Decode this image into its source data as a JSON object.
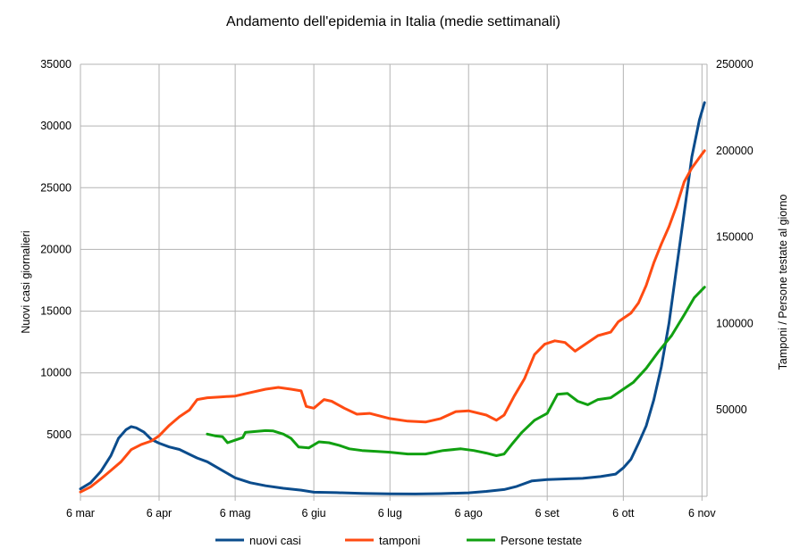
{
  "chart_data": {
    "type": "line",
    "title": "Andamento dell'epidemia in Italia (medie settimanali)",
    "ylabel_left": "Nuovi casi giornalieri",
    "ylabel_right": "Tamponi / Persone testate al giorno",
    "x_tick_labels": [
      "6 mar",
      "6 apr",
      "6 mag",
      "6 giu",
      "6 lug",
      "6 ago",
      "6 set",
      "6 ott",
      "6 nov"
    ],
    "ylim_left": [
      0,
      35000
    ],
    "ylim_right": [
      0,
      250000
    ],
    "y_left_ticks": [
      "5000",
      "10000",
      "15000",
      "20000",
      "25000",
      "30000",
      "35000"
    ],
    "y_right_ticks": [
      "50000",
      "100000",
      "150000",
      "200000",
      "250000"
    ],
    "grid": true,
    "legend_position": "bottom",
    "series": [
      {
        "name": "nuovi casi",
        "axis": "left",
        "color": "#0b4c8c",
        "points": [
          [
            "2020-03-06",
            600
          ],
          [
            "2020-03-10",
            1100
          ],
          [
            "2020-03-14",
            2000
          ],
          [
            "2020-03-18",
            3300
          ],
          [
            "2020-03-21",
            4700
          ],
          [
            "2020-03-24",
            5400
          ],
          [
            "2020-03-26",
            5650
          ],
          [
            "2020-03-28",
            5550
          ],
          [
            "2020-03-31",
            5200
          ],
          [
            "2020-04-03",
            4600
          ],
          [
            "2020-04-06",
            4300
          ],
          [
            "2020-04-10",
            4000
          ],
          [
            "2020-04-14",
            3800
          ],
          [
            "2020-04-18",
            3400
          ],
          [
            "2020-04-21",
            3100
          ],
          [
            "2020-04-25",
            2800
          ],
          [
            "2020-04-30",
            2200
          ],
          [
            "2020-05-06",
            1500
          ],
          [
            "2020-05-12",
            1100
          ],
          [
            "2020-05-18",
            850
          ],
          [
            "2020-05-25",
            650
          ],
          [
            "2020-06-01",
            500
          ],
          [
            "2020-06-06",
            330
          ],
          [
            "2020-06-15",
            300
          ],
          [
            "2020-06-25",
            230
          ],
          [
            "2020-07-06",
            200
          ],
          [
            "2020-07-16",
            190
          ],
          [
            "2020-07-26",
            220
          ],
          [
            "2020-08-06",
            280
          ],
          [
            "2020-08-13",
            400
          ],
          [
            "2020-08-20",
            550
          ],
          [
            "2020-08-25",
            800
          ],
          [
            "2020-08-31",
            1250
          ],
          [
            "2020-09-06",
            1350
          ],
          [
            "2020-09-12",
            1400
          ],
          [
            "2020-09-20",
            1450
          ],
          [
            "2020-09-27",
            1600
          ],
          [
            "2020-10-03",
            1800
          ],
          [
            "2020-10-06",
            2300
          ],
          [
            "2020-10-09",
            3000
          ],
          [
            "2020-10-12",
            4300
          ],
          [
            "2020-10-15",
            5700
          ],
          [
            "2020-10-18",
            7800
          ],
          [
            "2020-10-21",
            10500
          ],
          [
            "2020-10-24",
            14000
          ],
          [
            "2020-10-27",
            18500
          ],
          [
            "2020-10-30",
            23000
          ],
          [
            "2020-11-02",
            27500
          ],
          [
            "2020-11-05",
            30500
          ],
          [
            "2020-11-07",
            31900
          ]
        ]
      },
      {
        "name": "tamponi",
        "axis": "right",
        "color": "#ff4b12",
        "points": [
          [
            "2020-03-06",
            2500
          ],
          [
            "2020-03-10",
            5500
          ],
          [
            "2020-03-14",
            10000
          ],
          [
            "2020-03-18",
            15000
          ],
          [
            "2020-03-22",
            20000
          ],
          [
            "2020-03-26",
            27000
          ],
          [
            "2020-03-30",
            30000
          ],
          [
            "2020-04-03",
            32000
          ],
          [
            "2020-04-06",
            35000
          ],
          [
            "2020-04-10",
            41000
          ],
          [
            "2020-04-14",
            46000
          ],
          [
            "2020-04-18",
            50000
          ],
          [
            "2020-04-21",
            56000
          ],
          [
            "2020-04-25",
            57000
          ],
          [
            "2020-04-30",
            57500
          ],
          [
            "2020-05-06",
            58000
          ],
          [
            "2020-05-12",
            60000
          ],
          [
            "2020-05-18",
            62000
          ],
          [
            "2020-05-23",
            63000
          ],
          [
            "2020-05-28",
            62000
          ],
          [
            "2020-06-01",
            61000
          ],
          [
            "2020-06-03",
            52000
          ],
          [
            "2020-06-06",
            51000
          ],
          [
            "2020-06-10",
            56000
          ],
          [
            "2020-06-13",
            55000
          ],
          [
            "2020-06-18",
            51000
          ],
          [
            "2020-06-23",
            47500
          ],
          [
            "2020-06-28",
            48000
          ],
          [
            "2020-07-06",
            45000
          ],
          [
            "2020-07-13",
            43500
          ],
          [
            "2020-07-20",
            43000
          ],
          [
            "2020-07-26",
            45000
          ],
          [
            "2020-08-01",
            49000
          ],
          [
            "2020-08-06",
            49500
          ],
          [
            "2020-08-13",
            47000
          ],
          [
            "2020-08-17",
            44000
          ],
          [
            "2020-08-20",
            47000
          ],
          [
            "2020-08-24",
            58000
          ],
          [
            "2020-08-28",
            68000
          ],
          [
            "2020-09-01",
            82000
          ],
          [
            "2020-09-05",
            88000
          ],
          [
            "2020-09-09",
            90000
          ],
          [
            "2020-09-13",
            89000
          ],
          [
            "2020-09-17",
            84000
          ],
          [
            "2020-09-21",
            88000
          ],
          [
            "2020-09-26",
            93000
          ],
          [
            "2020-10-01",
            95000
          ],
          [
            "2020-10-04",
            101000
          ],
          [
            "2020-10-06",
            103000
          ],
          [
            "2020-10-09",
            106000
          ],
          [
            "2020-10-12",
            112000
          ],
          [
            "2020-10-15",
            122000
          ],
          [
            "2020-10-18",
            135000
          ],
          [
            "2020-10-21",
            146000
          ],
          [
            "2020-10-24",
            156000
          ],
          [
            "2020-10-27",
            168000
          ],
          [
            "2020-10-30",
            182000
          ],
          [
            "2020-11-02",
            190000
          ],
          [
            "2020-11-05",
            196000
          ],
          [
            "2020-11-07",
            200000
          ]
        ]
      },
      {
        "name": "Persone testate",
        "axis": "right",
        "color": "#11a011",
        "points": [
          [
            "2020-04-25",
            36000
          ],
          [
            "2020-04-28",
            35000
          ],
          [
            "2020-05-01",
            34500
          ],
          [
            "2020-05-03",
            31000
          ],
          [
            "2020-05-06",
            32500
          ],
          [
            "2020-05-09",
            34000
          ],
          [
            "2020-05-10",
            37000
          ],
          [
            "2020-05-14",
            37500
          ],
          [
            "2020-05-18",
            38000
          ],
          [
            "2020-05-21",
            37800
          ],
          [
            "2020-05-25",
            36000
          ],
          [
            "2020-05-28",
            33500
          ],
          [
            "2020-05-31",
            28500
          ],
          [
            "2020-06-04",
            28000
          ],
          [
            "2020-06-08",
            31500
          ],
          [
            "2020-06-12",
            31000
          ],
          [
            "2020-06-16",
            29500
          ],
          [
            "2020-06-20",
            27500
          ],
          [
            "2020-06-25",
            26500
          ],
          [
            "2020-07-01",
            26000
          ],
          [
            "2020-07-06",
            25500
          ],
          [
            "2020-07-13",
            24500
          ],
          [
            "2020-07-20",
            24500
          ],
          [
            "2020-07-27",
            26500
          ],
          [
            "2020-08-03",
            27500
          ],
          [
            "2020-08-08",
            26500
          ],
          [
            "2020-08-13",
            25000
          ],
          [
            "2020-08-17",
            23500
          ],
          [
            "2020-08-20",
            24500
          ],
          [
            "2020-08-23",
            30000
          ],
          [
            "2020-08-27",
            37000
          ],
          [
            "2020-09-01",
            44000
          ],
          [
            "2020-09-06",
            48000
          ],
          [
            "2020-09-10",
            59000
          ],
          [
            "2020-09-14",
            59500
          ],
          [
            "2020-09-18",
            55000
          ],
          [
            "2020-09-22",
            53000
          ],
          [
            "2020-09-26",
            56000
          ],
          [
            "2020-10-01",
            57000
          ],
          [
            "2020-10-06",
            62000
          ],
          [
            "2020-10-10",
            66000
          ],
          [
            "2020-10-15",
            74000
          ],
          [
            "2020-10-20",
            84000
          ],
          [
            "2020-10-25",
            93000
          ],
          [
            "2020-10-30",
            105000
          ],
          [
            "2020-11-03",
            115000
          ],
          [
            "2020-11-07",
            121000
          ]
        ]
      }
    ]
  }
}
